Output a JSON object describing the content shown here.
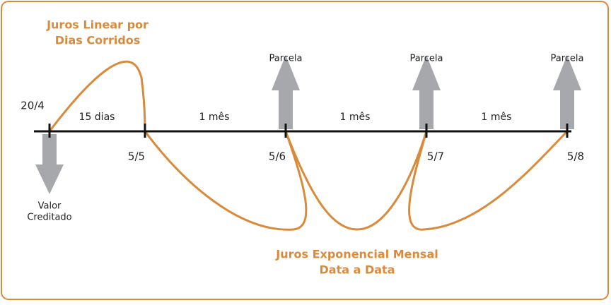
{
  "linear_label": [
    "Juros Linear por",
    "Dias Corridos"
  ],
  "exponential_label": [
    "Juros Exponencial Mensal",
    "Data a Data"
  ],
  "dates": [
    "20/4",
    "5/5",
    "5/6",
    "5/7",
    "5/8"
  ],
  "intervals": [
    "15 dias",
    "1 mês",
    "1 mês",
    "1 mês"
  ],
  "credit_label": [
    "Valor",
    "Creditado"
  ],
  "installment_labels": [
    "Parcela",
    "Parcela",
    "Parcela"
  ]
}
